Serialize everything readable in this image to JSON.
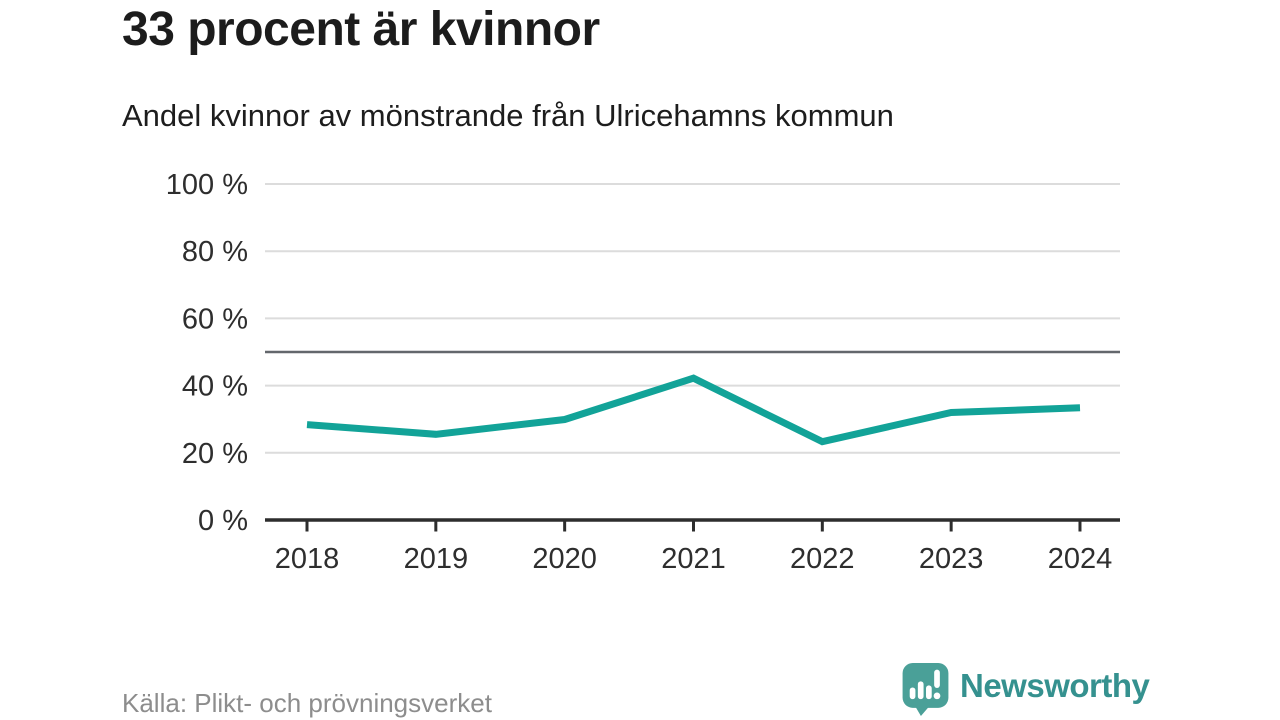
{
  "header": {
    "title": "33 procent är kvinnor",
    "subtitle": "Andel kvinnor av mönstrande från Ulricehamns kommun"
  },
  "footer": {
    "source": "Källa: Plikt- och prövningsverket",
    "brand": "Newsworthy",
    "logo_icon": "newsworthy-bar-chart-bubble-icon"
  },
  "colors": {
    "line": "#12a398",
    "reference_line": "#63676c",
    "grid": "#dcdcdc",
    "axis": "#2d2d2d",
    "tick_label": "#2e2e2e",
    "title": "#1c1c1c",
    "subtitle": "#1d1d1d",
    "source": "#8d8d8d",
    "brand_text": "#35918f",
    "logo_fill": "#4aa098",
    "logo_glyph": "#ffffff"
  },
  "chart_data": {
    "type": "line",
    "title": "33 procent är kvinnor",
    "subtitle": "Andel kvinnor av mönstrande från Ulricehamns kommun",
    "x": [
      "2018",
      "2019",
      "2020",
      "2021",
      "2022",
      "2023",
      "2024"
    ],
    "series": [
      {
        "name": "Andel kvinnor av mönstrande",
        "values": [
          28.4,
          25.5,
          29.9,
          42.2,
          23.3,
          32.0,
          33.4
        ]
      }
    ],
    "unit": "%",
    "ylim": [
      0,
      100
    ],
    "yticks": [
      0,
      20,
      40,
      60,
      80,
      100
    ],
    "ytick_format": "{v} %",
    "reference_line": 50,
    "grid": true,
    "legend_position": "none",
    "source": "Källa: Plikt- och prövningsverket"
  }
}
